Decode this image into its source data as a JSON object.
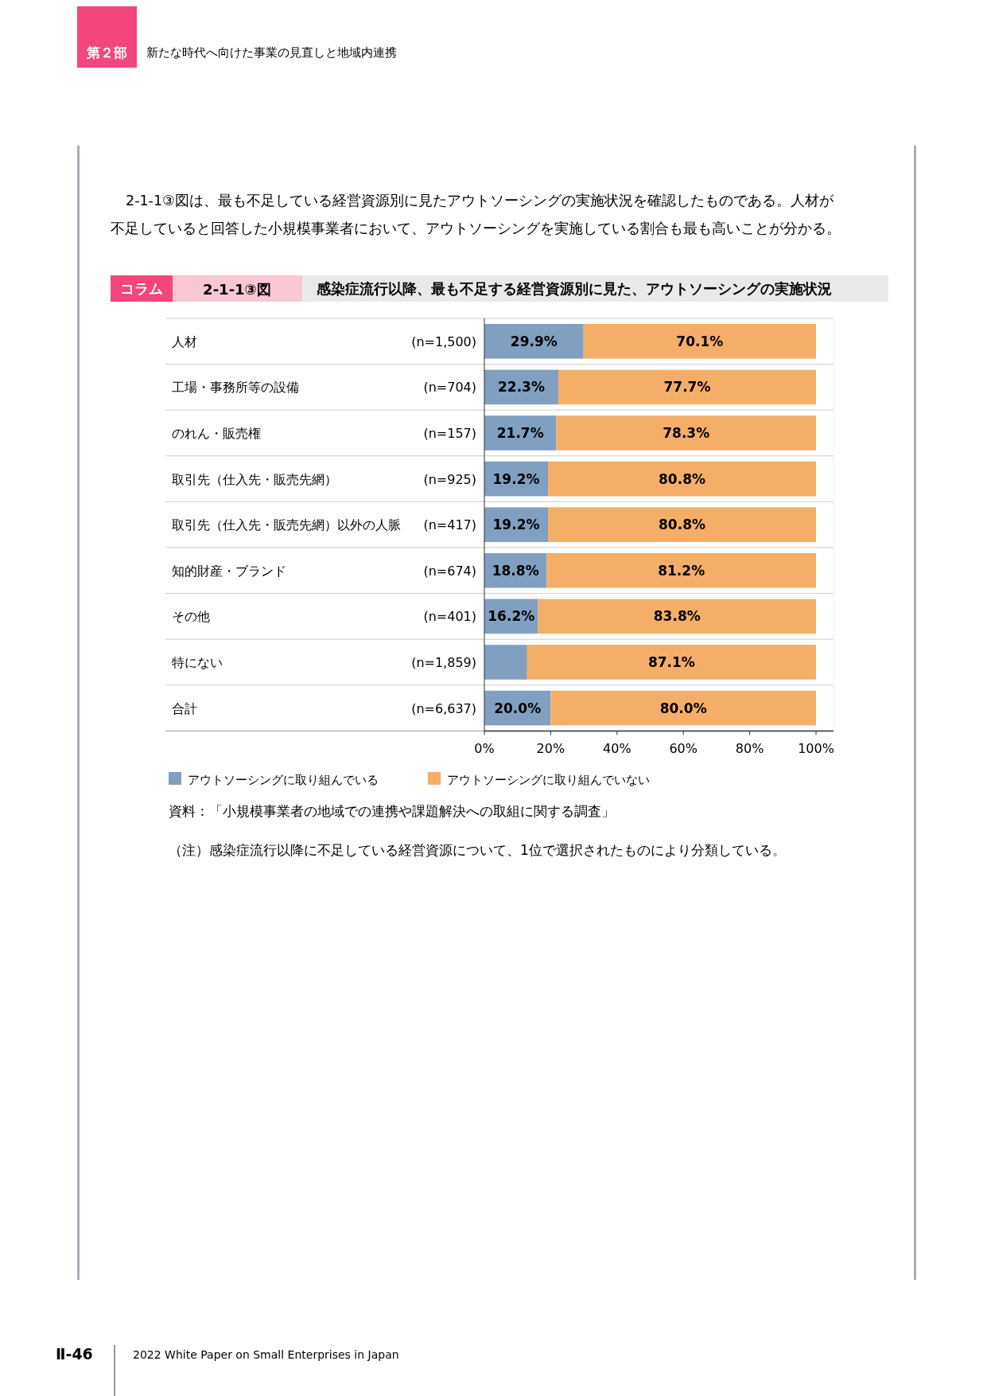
{
  "chart_data": {
    "type": "bar",
    "orientation": "horizontal",
    "stacked": true,
    "title": "感染症流行以降、最も不足する経営資源別に見た、アウトソーシングの実施状況",
    "subtitle": "2-1-1③図",
    "categories": [
      "人材 (n=1,500)",
      "工場・事務所等の設備 (n=704)",
      "のれん・販売権 (n=157)",
      "取引先（仕入先・販売先網） (n=925)",
      "取引先（仕入先・販売先網）以外の人脈 (n=417)",
      "知的財産・ブランド (n=674)",
      "その他 (n=401)",
      "特にない (n=1,859)",
      "合計 (n=6,637)"
    ],
    "series": [
      {
        "name": "アウトソーシングに取り組んでいる",
        "color": "#819fc1",
        "values": [
          29.9,
          22.3,
          21.7,
          19.2,
          19.2,
          18.8,
          16.2,
          12.9,
          20.0
        ],
        "value_labels": [
          "29.9%",
          "22.3%",
          "21.7%",
          "19.2%",
          "19.2%",
          "18.8%",
          "16.2%",
          null,
          "20.0%"
        ]
      },
      {
        "name": "アウトソーシングに取り組んでいない",
        "color": "#f4ae67",
        "values": [
          70.1,
          77.7,
          78.3,
          80.8,
          80.8,
          81.2,
          83.8,
          87.1,
          80.0
        ],
        "value_labels": [
          "70.1%",
          "77.7%",
          "78.3%",
          "80.8%",
          "80.8%",
          "81.2%",
          "83.8%",
          "87.1%",
          "80.0%"
        ]
      }
    ],
    "xlim": [
      0,
      100
    ],
    "xticks": [
      {
        "value": 0,
        "label": "0%"
      },
      {
        "value": 20,
        "label": "20%"
      },
      {
        "value": 40,
        "label": "40%"
      },
      {
        "value": 60,
        "label": "60%"
      },
      {
        "value": 80,
        "label": "80%"
      },
      {
        "value": 100,
        "label": "100%"
      }
    ],
    "legend": "bottom",
    "annotations": [
      "第２部",
      "新たな時代へ向けた事業の見直しと地域内連携",
      "2-1-1③図は、最も不足している経営資源別に見たアウトソーシングの実施状況を確認したものである。人材が",
      "不足していると回答した小規模事業者において、アウトソーシングを実施している割合も最も高いことが分かる。",
      "コラム",
      "資料：「小規模事業者の地域での連携や課題解決への取組に関する調査」",
      "（注）感染症流行以降に不足している経営資源について、1位で選択されたものにより分類している。",
      "Ⅱ-46",
      "2022 White Paper on Small Enterprises in Japan"
    ]
  }
}
